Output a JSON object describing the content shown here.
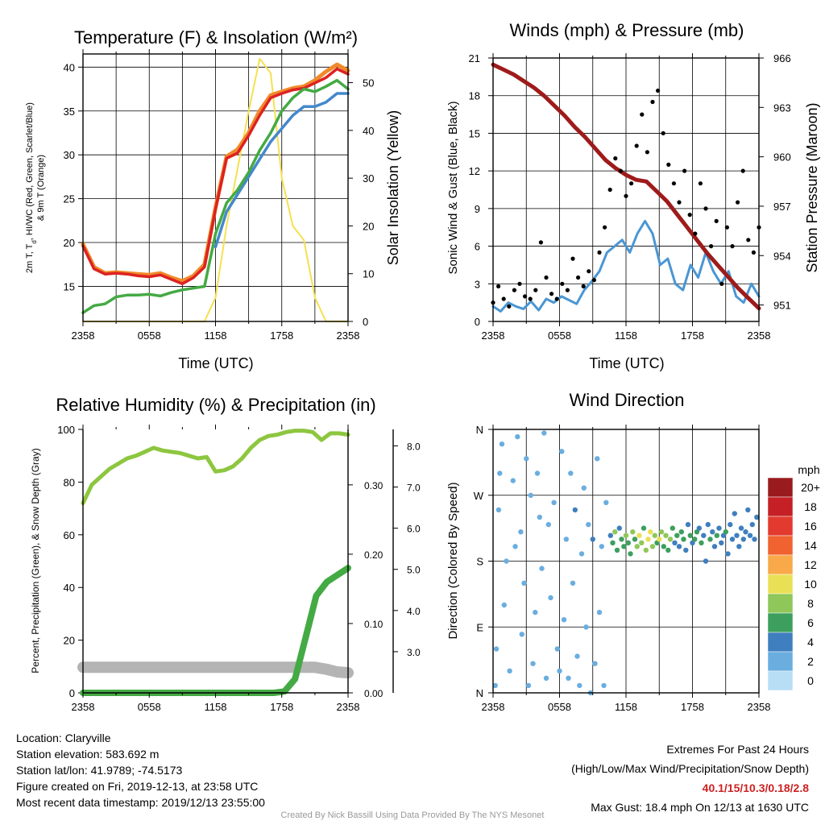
{
  "footer": {
    "location": "Location: Claryville",
    "elevation": "Station elevation: 583.692 m",
    "latlon": "Station lat/lon: 41.9789; -74.5173",
    "created": "Figure created on Fri, 2019-12-13, at 23:58 UTC",
    "recent": "Most recent data timestamp: 2019/12/13 23:55:00",
    "extremes_title": "Extremes For Past 24 Hours",
    "extremes_sub": "(High/Low/Max Wind/Precipitation/Snow Depth)",
    "extremes_values": "40.1/15/10.3/0.18/2.8",
    "max_gust": "Max Gust: 18.4 mph On 12/13 at 1630 UTC",
    "credit": "Created By Nick Bassill Using Data Provided By The NYS Mesonet"
  },
  "chart_data": [
    {
      "type": "line",
      "title": "Temperature (F) & Insolation (W/m²)",
      "xlabel": "Time (UTC)",
      "ylabel": "2m T, Td, HI/WC (Red, Green, Scarlet/Blue) & 9m T (Orange)",
      "ylabel_left_line1": "2m T, T",
      "ylabel_left_sub": "d",
      "ylabel_left_line1b": ", HI/WC (Red, Green, Scarlet/Blue)",
      "ylabel_left_line2": "& 9m T (Orange)",
      "y2label": "Solar Insolation (Yellow)",
      "x_ticks": [
        "2358",
        "0558",
        "1158",
        "1758",
        "2358"
      ],
      "x": [
        0,
        1,
        2,
        3,
        4,
        5,
        6,
        7,
        8,
        9,
        10,
        11,
        12,
        13,
        14,
        15,
        16,
        17,
        18,
        19,
        20,
        21,
        22,
        23,
        24
      ],
      "ylim": [
        11,
        41.5
      ],
      "yticks": [
        15,
        20,
        25,
        30,
        35,
        40
      ],
      "y2lim": [
        0,
        56
      ],
      "y2ticks": [
        0,
        10,
        20,
        30,
        40,
        50
      ],
      "series": [
        {
          "color": "#f08a2a",
          "values": [
            19.8,
            17.2,
            16.5,
            16.6,
            16.5,
            16.4,
            16.3,
            16.5,
            16.0,
            15.6,
            16.2,
            17.5,
            24,
            29.8,
            30.6,
            32.5,
            35,
            36.8,
            37.2,
            37.6,
            37.8,
            38.5,
            39.5,
            40.3,
            39.6
          ]
        },
        {
          "color": "#dd2222",
          "values": [
            19.6,
            17.0,
            16.4,
            16.5,
            16.4,
            16.2,
            16.1,
            16.3,
            15.8,
            15.3,
            16.0,
            17.2,
            23.8,
            29.6,
            30.2,
            32.2,
            34.5,
            36.5,
            37.0,
            37.4,
            37.6,
            38.2,
            38.8,
            39.8,
            39.2
          ]
        },
        {
          "color": "#44aa44",
          "values": [
            12.0,
            12.8,
            13.0,
            13.8,
            14.0,
            14.0,
            14.1,
            13.9,
            14.3,
            14.6,
            14.8,
            15.0,
            21,
            24.5,
            26,
            28,
            30.5,
            32.5,
            35,
            36.5,
            37.5,
            37.2,
            37.8,
            38.5,
            37.5
          ]
        },
        {
          "color": "#4488cc",
          "values": [
            null,
            15.5,
            null,
            null,
            null,
            null,
            12.8,
            null,
            null,
            null,
            null,
            null,
            19.5,
            23.5,
            25.5,
            27.5,
            29.5,
            31.5,
            33,
            34.5,
            35.5,
            35.5,
            36,
            37,
            37
          ]
        },
        {
          "color": "#f5e050",
          "axis": "y2",
          "values": [
            0,
            0,
            0,
            0,
            0,
            0,
            0,
            0,
            0,
            0,
            0,
            0,
            5,
            20,
            32,
            44,
            55,
            52,
            30,
            20,
            17,
            5,
            0,
            0,
            0
          ]
        }
      ]
    },
    {
      "type": "line",
      "title": "Winds (mph) & Pressure (mb)",
      "xlabel": "Time (UTC)",
      "ylabel": "Sonic Wind & Gust (Blue, Black)",
      "y2label": "Station Pressure (Maroon)",
      "x_ticks": [
        "2358",
        "0558",
        "1158",
        "1758",
        "2358"
      ],
      "ylim": [
        0,
        21
      ],
      "yticks": [
        0,
        3,
        6,
        9,
        12,
        15,
        18,
        21
      ],
      "y2lim": [
        950,
        966
      ],
      "y2ticks": [
        951,
        954,
        957,
        960,
        963,
        966
      ],
      "series": [
        {
          "color": "#4a96d4",
          "values": [
            1.2,
            0.8,
            1.5,
            1.2,
            1.0,
            1.6,
            0.9,
            1.8,
            1.5,
            2.0,
            1.7,
            1.4,
            2.5,
            3.2,
            4.0,
            5.5,
            6.0,
            6.5,
            5.5,
            7.0,
            8.0,
            7.0,
            4.5,
            5.0,
            3.0,
            2.5,
            4.5,
            3.5,
            5.5,
            4.0,
            3.0,
            4.0,
            2.0,
            1.5,
            3.0,
            2.0
          ]
        },
        {
          "color": "#9e1b1b",
          "axis": "y2",
          "values": [
            965.6,
            965.3,
            965.0,
            964.6,
            964.2,
            963.7,
            963.1,
            962.5,
            961.8,
            961.2,
            960.5,
            959.8,
            959.3,
            958.9,
            958.6,
            958.5,
            957.9,
            957.3,
            956.5,
            955.7,
            954.9,
            954.1,
            953.4,
            952.7,
            952.0,
            951.4,
            950.8
          ]
        },
        {
          "color": "#000000",
          "marker": "dot",
          "values": [
            1.5,
            2.8,
            1.8,
            1.2,
            2.5,
            3.0,
            2.0,
            1.8,
            2.5,
            6.3,
            3.5,
            2.2,
            1.8,
            3.0,
            2.5,
            5.0,
            3.5,
            2.8,
            4.0,
            3.3,
            5.5,
            7.5,
            10.5,
            13.0,
            12.0,
            10.0,
            11.0,
            14.0,
            16.5,
            13.5,
            17.5,
            18.4,
            15.0,
            12.5,
            11.0,
            9.5,
            12.0,
            8.5,
            7.0,
            11.0,
            9.0,
            6.0,
            8.0,
            3.0,
            7.5,
            6.0,
            9.5,
            12.0,
            6.5,
            5.5,
            7.5
          ]
        }
      ]
    },
    {
      "type": "line",
      "title": "Relative Humidity (%) & Precipitation (in)",
      "ylabel": "Percent, Precipitation (Green), & Snow Depth (Gray)",
      "x_ticks": [
        "2358",
        "0558",
        "1158",
        "1758",
        "2358"
      ],
      "ylim": [
        0,
        100
      ],
      "yticks": [
        0,
        20,
        40,
        60,
        80,
        100
      ],
      "y2ticks_precip": [
        "0.00",
        "0.10",
        "0.20",
        "0.30"
      ],
      "y2ticks_snow": [
        "3.0",
        "4.0",
        "5.0",
        "6.0",
        "7.0",
        "8.0"
      ],
      "series": [
        {
          "name": "RH",
          "color": "#8dc63f",
          "values": [
            72,
            79,
            82,
            85,
            87,
            89,
            90,
            91.5,
            93,
            92,
            91.5,
            91,
            90,
            89,
            89.5,
            84,
            84.5,
            86,
            89,
            93,
            96,
            97.5,
            98,
            99,
            99.5,
            99.5,
            99,
            96,
            98.5,
            98.5,
            98
          ]
        },
        {
          "name": "Precip",
          "color": "#44aa44",
          "values": [
            0,
            0,
            0,
            0,
            0,
            0,
            0,
            0,
            0,
            0,
            0,
            0,
            0,
            0,
            0,
            0,
            0,
            0,
            0,
            0.002,
            0.02,
            0.08,
            0.14,
            0.16,
            0.17,
            0.18
          ]
        },
        {
          "name": "Snow",
          "color": "#b4b4b4",
          "values": [
            2.8,
            2.8,
            2.8,
            2.8,
            2.8,
            2.8,
            2.8,
            2.8,
            2.8,
            2.8,
            2.8,
            2.8,
            2.8,
            2.8,
            2.8,
            2.8,
            2.8,
            2.8,
            2.8,
            2.8,
            2.8,
            2.8,
            2.6,
            2.3,
            2.2
          ]
        }
      ]
    },
    {
      "type": "scatter",
      "title": "Wind Direction",
      "ylabel": "Direction (Colored By Speed)",
      "x_ticks": [
        "2358",
        "0558",
        "1158",
        "1758",
        "2358"
      ],
      "y_ticks": [
        "N",
        "E",
        "S",
        "W",
        "N"
      ],
      "ylim": [
        0,
        360
      ],
      "colorbar": {
        "title": "mph",
        "labels": [
          "20+",
          "18",
          "16",
          "14",
          "12",
          "10",
          "8",
          "6",
          "4",
          "2",
          "0"
        ],
        "colors": [
          "#991b1e",
          "#c42025",
          "#e23a2f",
          "#f06331",
          "#f9a94a",
          "#e9e055",
          "#8fc75a",
          "#3d9f5e",
          "#3f7fbf",
          "#6aaee0",
          "#b8def5"
        ]
      },
      "points": [
        [
          0.2,
          10,
          1
        ],
        [
          0.3,
          60,
          1
        ],
        [
          0.5,
          250,
          1
        ],
        [
          0.6,
          300,
          1
        ],
        [
          0.8,
          340,
          1
        ],
        [
          1.0,
          120,
          1
        ],
        [
          1.2,
          180,
          1
        ],
        [
          1.5,
          30,
          1
        ],
        [
          1.8,
          290,
          1
        ],
        [
          2.0,
          200,
          1
        ],
        [
          2.2,
          350,
          1
        ],
        [
          2.5,
          220,
          1
        ],
        [
          2.6,
          80,
          1
        ],
        [
          2.8,
          150,
          1
        ],
        [
          3.0,
          320,
          1
        ],
        [
          3.2,
          10,
          1
        ],
        [
          3.4,
          270,
          2
        ],
        [
          3.6,
          40,
          1
        ],
        [
          3.8,
          110,
          1
        ],
        [
          4.0,
          300,
          1
        ],
        [
          4.2,
          240,
          1
        ],
        [
          4.4,
          170,
          1
        ],
        [
          4.6,
          355,
          1
        ],
        [
          4.8,
          20,
          1
        ],
        [
          5.0,
          230,
          2
        ],
        [
          5.2,
          130,
          1
        ],
        [
          5.5,
          260,
          1
        ],
        [
          5.8,
          60,
          1
        ],
        [
          6.0,
          30,
          1
        ],
        [
          6.2,
          330,
          1
        ],
        [
          6.4,
          100,
          1
        ],
        [
          6.6,
          210,
          1
        ],
        [
          6.8,
          20,
          1
        ],
        [
          7.0,
          300,
          1
        ],
        [
          7.2,
          150,
          1
        ],
        [
          7.4,
          250,
          3
        ],
        [
          7.6,
          50,
          1
        ],
        [
          7.8,
          10,
          1
        ],
        [
          8.0,
          190,
          2
        ],
        [
          8.2,
          280,
          1
        ],
        [
          8.4,
          90,
          1
        ],
        [
          8.6,
          230,
          1
        ],
        [
          8.8,
          0,
          1
        ],
        [
          9.0,
          210,
          4
        ],
        [
          9.2,
          40,
          1
        ],
        [
          9.4,
          320,
          1
        ],
        [
          9.6,
          110,
          1
        ],
        [
          9.8,
          200,
          1
        ],
        [
          10.0,
          10,
          1
        ],
        [
          10.2,
          260,
          1
        ],
        [
          10.6,
          215,
          4
        ],
        [
          10.8,
          205,
          6
        ],
        [
          11.0,
          220,
          7
        ],
        [
          11.2,
          195,
          5
        ],
        [
          11.4,
          225,
          4
        ],
        [
          11.6,
          210,
          6
        ],
        [
          11.8,
          200,
          5
        ],
        [
          12.0,
          215,
          8
        ],
        [
          12.2,
          205,
          6
        ],
        [
          12.4,
          190,
          5
        ],
        [
          12.6,
          220,
          7
        ],
        [
          12.8,
          210,
          6
        ],
        [
          13.0,
          200,
          8
        ],
        [
          13.2,
          215,
          9
        ],
        [
          13.4,
          205,
          7
        ],
        [
          13.6,
          225,
          6
        ],
        [
          13.8,
          195,
          8
        ],
        [
          14.0,
          210,
          9
        ],
        [
          14.2,
          220,
          10
        ],
        [
          14.4,
          200,
          8
        ],
        [
          14.6,
          215,
          7
        ],
        [
          14.8,
          205,
          6
        ],
        [
          15.0,
          210,
          9
        ],
        [
          15.2,
          220,
          8
        ],
        [
          15.4,
          200,
          6
        ],
        [
          15.6,
          215,
          7
        ],
        [
          15.8,
          195,
          5
        ],
        [
          16.0,
          210,
          8
        ],
        [
          16.2,
          225,
          6
        ],
        [
          16.4,
          205,
          4
        ],
        [
          16.6,
          215,
          5
        ],
        [
          16.8,
          200,
          4
        ],
        [
          17.0,
          220,
          6
        ],
        [
          17.2,
          210,
          5
        ],
        [
          17.4,
          195,
          4
        ],
        [
          17.6,
          230,
          3
        ],
        [
          17.8,
          215,
          5
        ],
        [
          18.0,
          205,
          4
        ],
        [
          18.2,
          210,
          6
        ],
        [
          18.4,
          220,
          5
        ],
        [
          18.6,
          225,
          4
        ],
        [
          18.8,
          205,
          6
        ],
        [
          19.0,
          215,
          4
        ],
        [
          19.2,
          180,
          3
        ],
        [
          19.4,
          230,
          4
        ],
        [
          19.6,
          210,
          5
        ],
        [
          19.8,
          220,
          4
        ],
        [
          20.0,
          200,
          3
        ],
        [
          20.2,
          215,
          5
        ],
        [
          20.4,
          225,
          4
        ],
        [
          20.6,
          205,
          3
        ],
        [
          20.8,
          215,
          4
        ],
        [
          21.0,
          220,
          5
        ],
        [
          21.2,
          190,
          4
        ],
        [
          21.4,
          230,
          3
        ],
        [
          21.6,
          210,
          4
        ],
        [
          21.8,
          245,
          3
        ],
        [
          22.0,
          215,
          4
        ],
        [
          22.2,
          200,
          3
        ],
        [
          22.4,
          225,
          4
        ],
        [
          22.6,
          210,
          3
        ],
        [
          22.8,
          220,
          4
        ],
        [
          23.0,
          250,
          3
        ],
        [
          23.2,
          215,
          4
        ],
        [
          23.4,
          230,
          3
        ],
        [
          23.6,
          210,
          4
        ],
        [
          23.8,
          240,
          3
        ]
      ]
    }
  ]
}
